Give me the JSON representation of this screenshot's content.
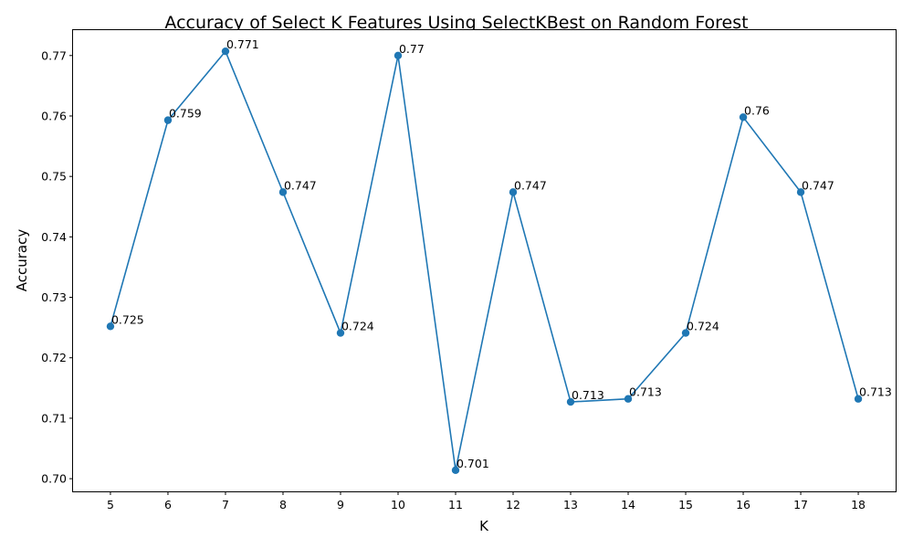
{
  "chart_data": {
    "type": "line",
    "title": "Accuracy of Select K Features Using SelectKBest on Random Forest",
    "xlabel": "K",
    "ylabel": "Accuracy",
    "x": [
      5,
      6,
      7,
      8,
      9,
      10,
      11,
      12,
      13,
      14,
      15,
      16,
      17,
      18
    ],
    "series": [
      {
        "values": [
          0.7252,
          0.7593,
          0.7707,
          0.7474,
          0.7241,
          0.77,
          0.7014,
          0.7474,
          0.7127,
          0.7132,
          0.7241,
          0.7598,
          0.7474,
          0.7132
        ],
        "labels": [
          "0.725",
          "0.759",
          "0.771",
          "0.747",
          "0.724",
          "0.77",
          "0.701",
          "0.747",
          "0.713",
          "0.713",
          "0.724",
          "0.76",
          "0.747",
          "0.713"
        ],
        "color": "#1f77b4",
        "marker": "circle"
      }
    ],
    "xticks": [
      "5",
      "6",
      "7",
      "8",
      "9",
      "10",
      "11",
      "12",
      "13",
      "14",
      "15",
      "16",
      "17",
      "18"
    ],
    "yticks": [
      "0.70",
      "0.71",
      "0.72",
      "0.73",
      "0.74",
      "0.75",
      "0.76",
      "0.77"
    ],
    "xlim": [
      4.35,
      18.65
    ],
    "ylim": [
      0.6979,
      0.7742
    ],
    "grid": false,
    "legend": "none"
  }
}
